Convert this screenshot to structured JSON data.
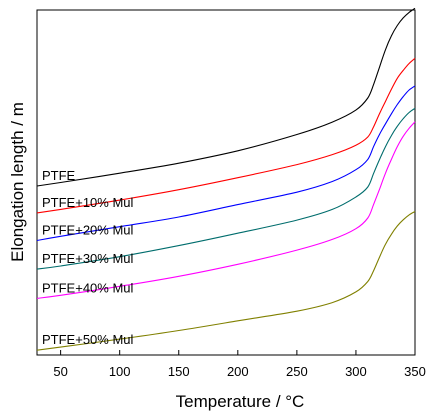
{
  "chart_data": {
    "type": "line",
    "xlabel": "Temperature / °C",
    "ylabel": "Elongation length /   m",
    "xlim": [
      30,
      350
    ],
    "ylim": [
      0,
      100
    ],
    "xticks": [
      50,
      100,
      150,
      200,
      250,
      300,
      350
    ],
    "yticks": [],
    "grid": false,
    "legend": "inline labels",
    "x": [
      30,
      50,
      100,
      150,
      200,
      250,
      280,
      300,
      310,
      315,
      320,
      325,
      330,
      335,
      340,
      345,
      350
    ],
    "series": [
      {
        "name": "PTFE",
        "color": "#000000",
        "values": [
          49,
          50,
          52.7,
          55.6,
          59.2,
          63.9,
          67.5,
          71,
          74.5,
          78.5,
          83.5,
          88.5,
          92.5,
          95.5,
          97.7,
          99.3,
          100.5
        ]
      },
      {
        "name": "PTFE+10% Mul",
        "color": "#ff0000",
        "values": [
          41.2,
          42.2,
          44.9,
          47.9,
          51.4,
          55.2,
          58.1,
          60.8,
          63.2,
          66.2,
          70,
          73.5,
          77,
          80.2,
          82.5,
          84.5,
          86
        ]
      },
      {
        "name": "PTFE+20% Mul",
        "color": "#0000ff",
        "values": [
          33.2,
          34.4,
          37.2,
          40,
          43.6,
          47.2,
          50.3,
          53.7,
          56.7,
          60.5,
          64,
          67,
          69.9,
          72.6,
          74.9,
          76.8,
          78
        ]
      },
      {
        "name": "PTFE+30% Mul",
        "color": "#006d6d",
        "values": [
          24.9,
          25.8,
          28.5,
          31.7,
          35.3,
          39.1,
          42.2,
          45.8,
          48.7,
          52.7,
          56.7,
          60.4,
          63.6,
          66.3,
          68.5,
          70.3,
          71.5
        ]
      },
      {
        "name": "PTFE+40% Mul",
        "color": "#ff00ff",
        "values": [
          16.4,
          17.3,
          19.9,
          22.8,
          26.3,
          30.4,
          33.5,
          36.6,
          39.7,
          43.7,
          48.1,
          52.7,
          56.7,
          60.4,
          63.4,
          65.7,
          67.6
        ]
      },
      {
        "name": "PTFE+50% Mul",
        "color": "#808000",
        "values": [
          1.4,
          2.3,
          4.6,
          7.1,
          9.9,
          12.7,
          15.2,
          18.3,
          21.3,
          24.5,
          28.4,
          32.1,
          35,
          37.4,
          39.2,
          40.6,
          41.6
        ]
      }
    ]
  }
}
